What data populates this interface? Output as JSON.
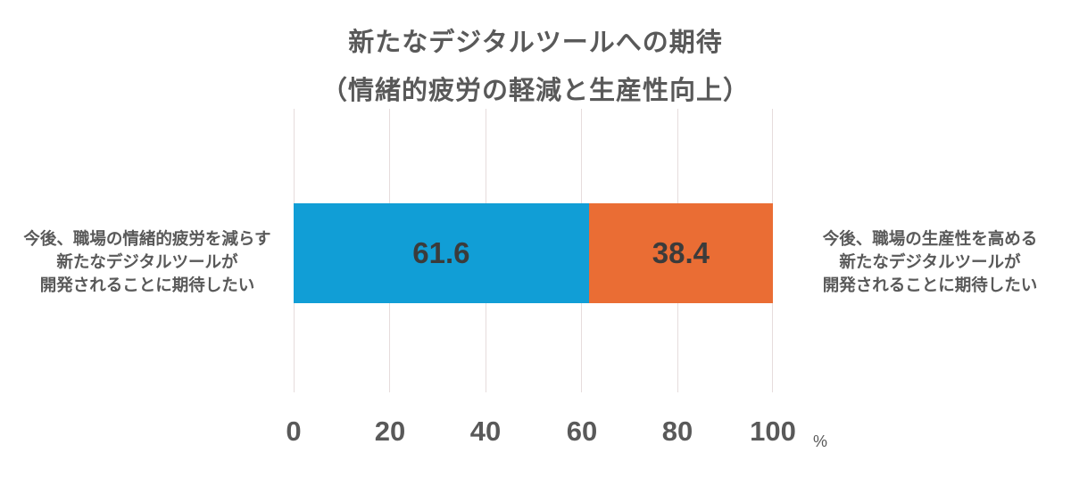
{
  "chart_data": {
    "type": "bar",
    "orientation": "horizontal",
    "stacked": true,
    "title": "新たなデジタルツールへの期待",
    "subtitle": "（情緒的疲労の軽減と生産性向上）",
    "xlabel": "%",
    "ylabel": "",
    "xlim": [
      0,
      100
    ],
    "x_ticks": [
      "0",
      "20",
      "40",
      "60",
      "80",
      "100"
    ],
    "grid": true,
    "legend": "none",
    "series": [
      {
        "name": "今後、職場の情緒的疲労を減らす新たなデジタルツールが開発されることに期待したい",
        "values": [
          61.6
        ],
        "color": "#119ed6",
        "label_lines": [
          "今後、職場の情緒的疲労を減らす",
          "新たなデジタルツールが",
          "開発されることに期待したい"
        ]
      },
      {
        "name": "今後、職場の生産性を高める新たなデジタルツールが開発されることに期待したい",
        "values": [
          38.4
        ],
        "color": "#ea6d34",
        "label_lines": [
          "今後、職場の生産性を高める",
          "新たなデジタルツールが",
          "開発されることに期待したい"
        ]
      }
    ],
    "data_labels": [
      "61.6",
      "38.4"
    ],
    "unit": "%"
  }
}
